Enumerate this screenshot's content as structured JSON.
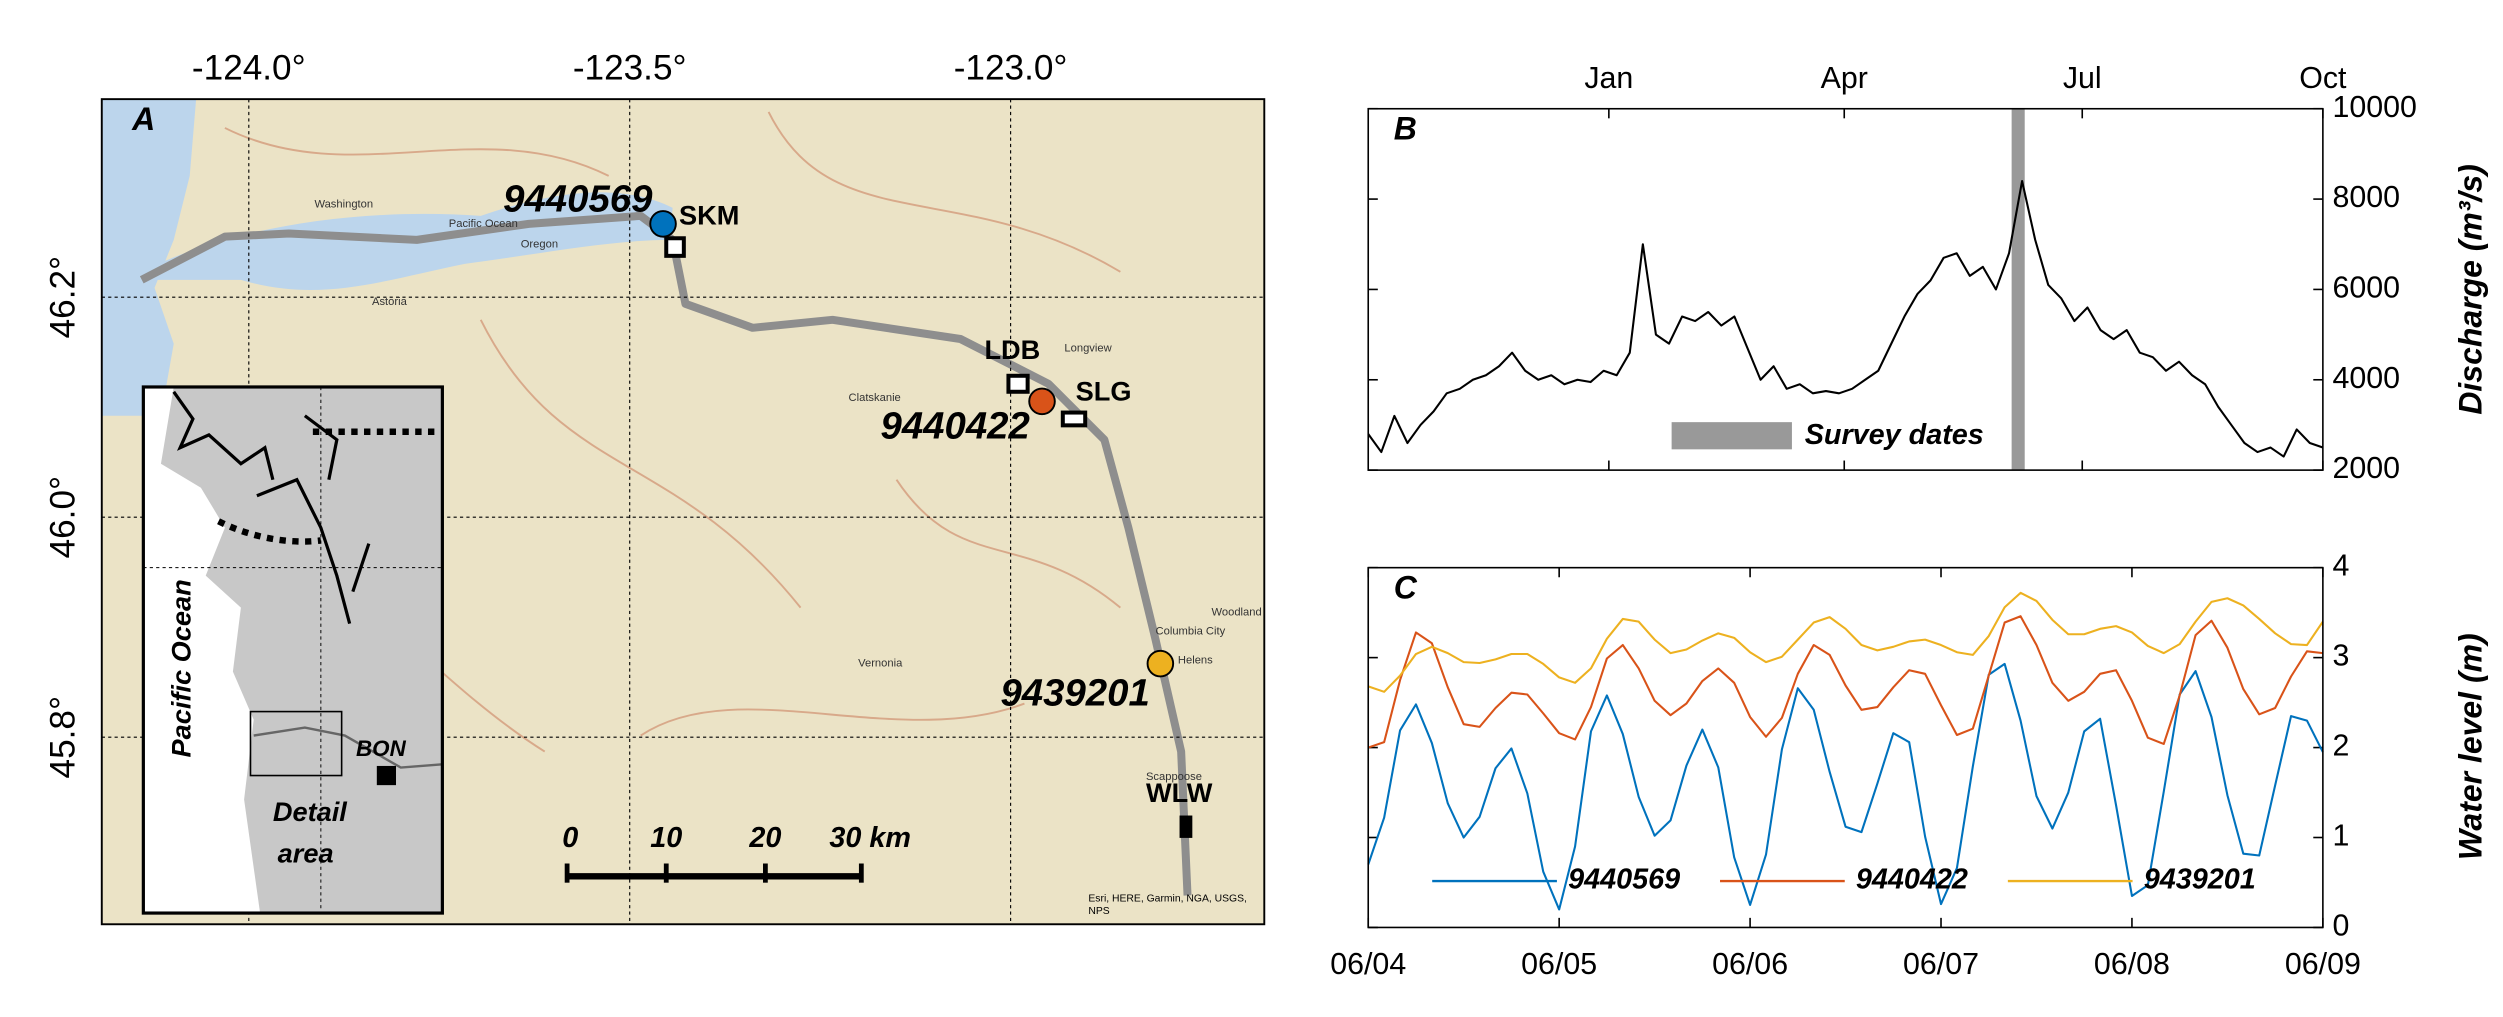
{
  "map": {
    "panel_label": "A",
    "xlim": [
      -124.193,
      -122.667
    ],
    "ylim": [
      45.63,
      46.38
    ],
    "xticks": [
      {
        "value": -124.0,
        "label": "-124.0°"
      },
      {
        "value": -123.5,
        "label": "-123.5°"
      },
      {
        "value": -123.0,
        "label": "-123.0°"
      }
    ],
    "yticks": [
      {
        "value": 46.2,
        "label": "46.2°"
      },
      {
        "value": 46.0,
        "label": "46.0°"
      },
      {
        "value": 45.8,
        "label": "45.8°"
      }
    ],
    "stations": [
      {
        "name": "9440569",
        "color": "#0072bd"
      },
      {
        "name": "9440422",
        "color": "#d95319"
      },
      {
        "name": "9439201",
        "color": "#edb120"
      }
    ],
    "sites": [
      "SKM",
      "LDB",
      "SLG",
      "WLW"
    ],
    "scale_bar": [
      "0",
      "10",
      "20",
      "30 km"
    ],
    "places": [
      "Pacific Ocean",
      "Astoria",
      "Oregon",
      "Washington",
      "Clatskanie",
      "Longview",
      "Vernonia",
      "Columbia City",
      "Helens",
      "Scappoose",
      "Woodland"
    ],
    "inset": {
      "ocean": "Pacific Ocean",
      "detail": [
        "Detail",
        "area"
      ],
      "site": "BON"
    },
    "attribution": [
      "Esri, HERE, Garmin, NGA, USGS,",
      "NPS"
    ]
  },
  "chart_data": [
    {
      "type": "line",
      "panel_label": "B",
      "y_label": "Discharge (m³/s)",
      "xlim": [
        0,
        365
      ],
      "xticks": [
        {
          "value": 92,
          "label": "Jan"
        },
        {
          "value": 182,
          "label": "Apr"
        },
        {
          "value": 273,
          "label": "Jul"
        },
        {
          "value": 365,
          "label": "Oct"
        }
      ],
      "ylim": [
        2000,
        10000
      ],
      "yticks": [
        10000,
        8000,
        6000,
        4000,
        2000
      ],
      "x": [
        0,
        5,
        10,
        15,
        20,
        25,
        30,
        35,
        40,
        45,
        50,
        55,
        60,
        65,
        70,
        75,
        80,
        85,
        90,
        95,
        100,
        105,
        110,
        115,
        120,
        125,
        130,
        135,
        140,
        145,
        150,
        155,
        160,
        165,
        170,
        175,
        180,
        185,
        190,
        195,
        200,
        205,
        210,
        215,
        220,
        225,
        230,
        235,
        240,
        245,
        250,
        255,
        260,
        265,
        270,
        275,
        280,
        285,
        290,
        295,
        300,
        305,
        310,
        315,
        320,
        325,
        330,
        335,
        340,
        345,
        350,
        355,
        360,
        365
      ],
      "series": [
        {
          "color": "#000000",
          "values": [
            2800,
            2400,
            3200,
            2600,
            3000,
            3300,
            3700,
            3800,
            4000,
            4100,
            4300,
            4600,
            4200,
            4000,
            4100,
            3900,
            4000,
            3950,
            4200,
            4100,
            4600,
            7000,
            5000,
            4800,
            5400,
            5300,
            5500,
            5200,
            5400,
            4700,
            4000,
            4300,
            3800,
            3900,
            3700,
            3750,
            3700,
            3800,
            4000,
            4200,
            4800,
            5400,
            5900,
            6200,
            6700,
            6800,
            6300,
            6500,
            6000,
            6800,
            8400,
            7100,
            6100,
            5800,
            5300,
            5600,
            5100,
            4900,
            5100,
            4600,
            4500,
            4200,
            4400,
            4100,
            3900,
            3400,
            3000,
            2600,
            2400,
            2500,
            2300,
            2900,
            2600,
            2500
          ]
        }
      ],
      "survey_span": {
        "label": "Survey dates",
        "x": [
          116,
          162
        ]
      },
      "highlight_x": [
        246,
        251
      ]
    },
    {
      "type": "line",
      "panel_label": "C",
      "y_label": "Water level (m)",
      "xlim": [
        0,
        120
      ],
      "xticks": [
        {
          "value": 0,
          "label": "06/04"
        },
        {
          "value": 24,
          "label": "06/05"
        },
        {
          "value": 48,
          "label": "06/06"
        },
        {
          "value": 72,
          "label": "06/07"
        },
        {
          "value": 96,
          "label": "06/08"
        },
        {
          "value": 120,
          "label": "06/09"
        }
      ],
      "ylim": [
        0,
        4
      ],
      "yticks": [
        4,
        3,
        2,
        1,
        0
      ],
      "x": [
        0,
        2,
        4,
        6,
        8,
        10,
        12,
        14,
        16,
        18,
        20,
        22,
        24,
        26,
        28,
        30,
        32,
        34,
        36,
        38,
        40,
        42,
        44,
        46,
        48,
        50,
        52,
        54,
        56,
        58,
        60,
        62,
        64,
        66,
        68,
        70,
        72,
        74,
        76,
        78,
        80,
        82,
        84,
        86,
        88,
        90,
        92,
        94,
        96,
        98,
        100,
        102,
        104,
        106,
        108,
        110,
        112,
        114,
        116,
        118,
        120
      ],
      "legend": "bottom",
      "series": [
        {
          "name": "9440569",
          "color": "#0072bd",
          "values": [
            0.7,
            1.22,
            2.19,
            2.48,
            2.05,
            1.38,
            1.0,
            1.23,
            1.77,
            1.99,
            1.49,
            0.62,
            0.2,
            0.9,
            2.18,
            2.58,
            2.15,
            1.45,
            1.02,
            1.19,
            1.8,
            2.2,
            1.78,
            0.78,
            0.25,
            0.81,
            1.98,
            2.66,
            2.42,
            1.73,
            1.12,
            1.06,
            1.6,
            2.16,
            2.06,
            1.01,
            0.26,
            0.66,
            1.79,
            2.81,
            2.93,
            2.3,
            1.46,
            1.1,
            1.5,
            2.18,
            2.32,
            1.36,
            0.35,
            0.47,
            1.51,
            2.59,
            2.85,
            2.34,
            1.47,
            0.82,
            0.8,
            1.58,
            2.35,
            2.3,
            1.95
          ]
        },
        {
          "name": "9440422",
          "color": "#d95319",
          "values": [
            2.0,
            2.06,
            2.75,
            3.28,
            3.16,
            2.67,
            2.26,
            2.23,
            2.44,
            2.61,
            2.59,
            2.38,
            2.16,
            2.09,
            2.45,
            2.99,
            3.14,
            2.88,
            2.52,
            2.36,
            2.49,
            2.74,
            2.88,
            2.72,
            2.34,
            2.12,
            2.33,
            2.82,
            3.14,
            3.03,
            2.69,
            2.42,
            2.45,
            2.67,
            2.86,
            2.82,
            2.47,
            2.14,
            2.21,
            2.8,
            3.39,
            3.46,
            3.14,
            2.72,
            2.52,
            2.62,
            2.82,
            2.86,
            2.52,
            2.11,
            2.04,
            2.58,
            3.25,
            3.41,
            3.11,
            2.65,
            2.37,
            2.44,
            2.79,
            3.07,
            3.05
          ]
        },
        {
          "name": "9439201",
          "color": "#edb120",
          "values": [
            2.68,
            2.62,
            2.8,
            3.04,
            3.12,
            3.05,
            2.95,
            2.94,
            2.98,
            3.04,
            3.04,
            2.93,
            2.78,
            2.72,
            2.88,
            3.21,
            3.43,
            3.4,
            3.2,
            3.05,
            3.09,
            3.19,
            3.27,
            3.22,
            3.06,
            2.95,
            3.01,
            3.2,
            3.39,
            3.45,
            3.32,
            3.14,
            3.08,
            3.12,
            3.18,
            3.2,
            3.14,
            3.06,
            3.03,
            3.24,
            3.56,
            3.72,
            3.63,
            3.42,
            3.26,
            3.26,
            3.32,
            3.35,
            3.28,
            3.13,
            3.05,
            3.15,
            3.4,
            3.62,
            3.66,
            3.58,
            3.43,
            3.27,
            3.15,
            3.14,
            3.4
          ]
        }
      ]
    }
  ]
}
